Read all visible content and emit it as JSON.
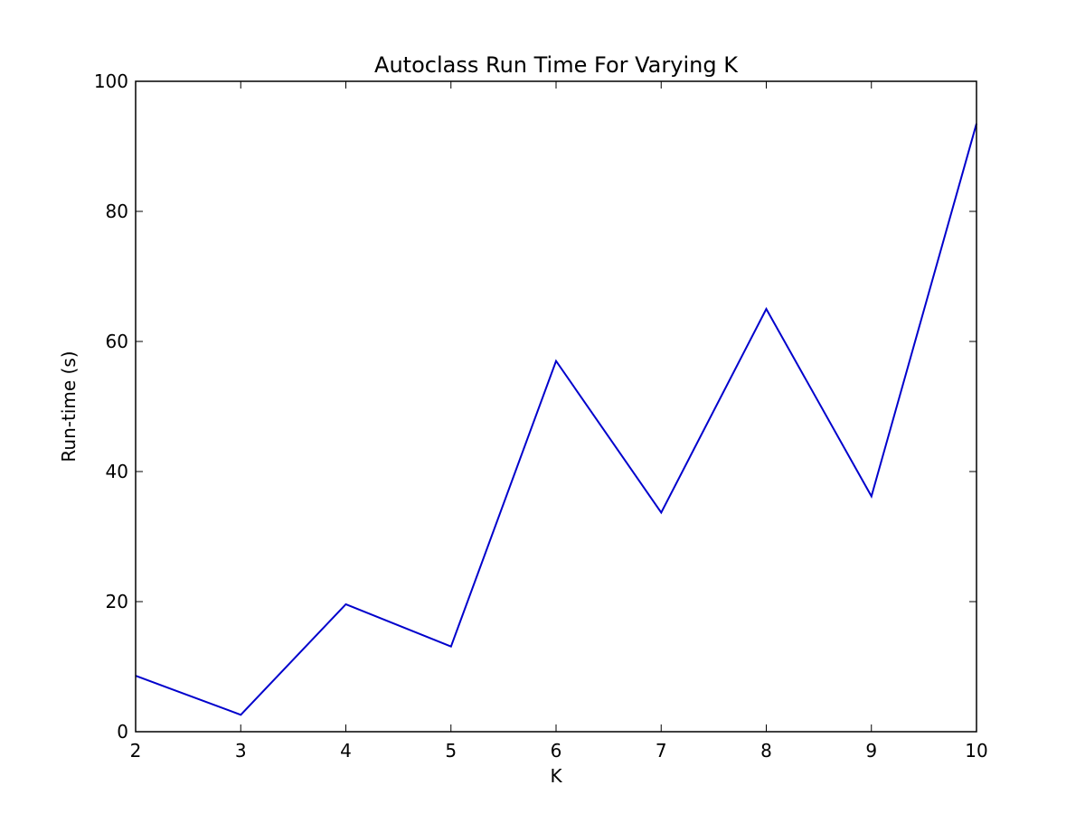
{
  "chart_data": {
    "type": "line",
    "title": "Autoclass Run Time For Varying K",
    "xlabel": "K",
    "ylabel": "Run-time (s)",
    "xlim": [
      2,
      10
    ],
    "ylim": [
      0,
      100
    ],
    "xticks": [
      "2",
      "3",
      "4",
      "5",
      "6",
      "7",
      "8",
      "9",
      "10"
    ],
    "yticks": [
      "0",
      "20",
      "40",
      "60",
      "80",
      "100"
    ],
    "grid": false,
    "series": [
      {
        "x": [
          2,
          3,
          4,
          5,
          6,
          7,
          8,
          9,
          10
        ],
        "values": [
          8.6,
          2.6,
          19.6,
          13.1,
          57.0,
          33.7,
          65.0,
          36.2,
          93.5
        ],
        "color": "#0000cc"
      }
    ]
  }
}
